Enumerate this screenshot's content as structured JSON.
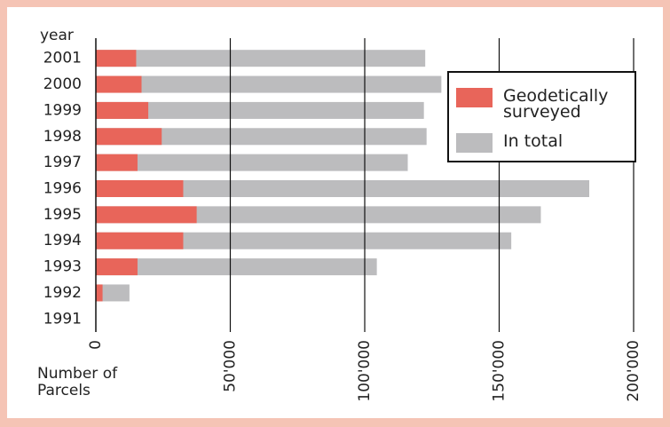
{
  "chart_data": {
    "type": "bar",
    "orientation": "horizontal",
    "overlap": true,
    "y_label": "year",
    "x_label": "Number of Parcels",
    "categories": [
      "2001",
      "2000",
      "1999",
      "1998",
      "1997",
      "1996",
      "1995",
      "1994",
      "1993",
      "1992",
      "1991"
    ],
    "series": [
      {
        "name": "In total",
        "color": "#bcbcbe",
        "values": [
          122500,
          128500,
          122000,
          123000,
          116000,
          183500,
          165500,
          154500,
          104500,
          12500,
          0
        ]
      },
      {
        "name": "Geodetically surveyed",
        "color": "#e8655a",
        "values": [
          15000,
          17000,
          19500,
          24500,
          15500,
          32500,
          37500,
          32500,
          15500,
          2500,
          0
        ]
      }
    ],
    "legend_order": [
      1,
      0
    ],
    "xlim": [
      0,
      200000
    ],
    "xticks": [
      0,
      {
        "value": 50000,
        "label": "50'000"
      },
      {
        "value": 100000,
        "label": "100'000"
      },
      {
        "value": 150000,
        "label": "150'000"
      },
      {
        "value": 200000,
        "label": "200'000"
      }
    ],
    "grid": true,
    "legend": "upper right"
  }
}
